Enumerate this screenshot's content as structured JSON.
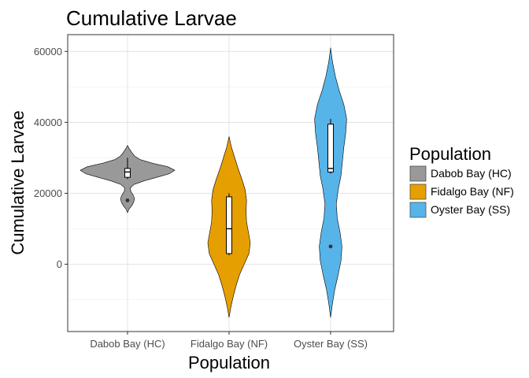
{
  "chart_data": {
    "type": "violin",
    "title": "Cumulative Larvae",
    "xlabel": "Population",
    "ylabel": "Cumulative Larvae",
    "ylim": [
      -16000,
      65000
    ],
    "yticks": [
      0,
      20000,
      40000,
      60000
    ],
    "ytick_labels": [
      "0",
      "20000",
      "40000",
      "60000"
    ],
    "grid": true,
    "legend": {
      "title": "Population",
      "position": "right"
    },
    "categories": [
      "Dabob Bay (HC)",
      "Fidalgo Bay (NF)",
      "Oyster Bay (SS)"
    ],
    "series": [
      {
        "name": "Dabob Bay (HC)",
        "color": "#999999",
        "box": {
          "q1": 24500,
          "median": 26000,
          "q3": 27000,
          "whisker_low": 24000,
          "whisker_high": 30000
        },
        "outliers": [
          18000
        ],
        "violin": {
          "min": 14500,
          "max": 33500,
          "profile": [
            [
              14500,
              0.0
            ],
            [
              15500,
              0.03
            ],
            [
              16500,
              0.09
            ],
            [
              17500,
              0.13
            ],
            [
              18500,
              0.15
            ],
            [
              19500,
              0.12
            ],
            [
              20500,
              0.07
            ],
            [
              21500,
              0.06
            ],
            [
              22500,
              0.14
            ],
            [
              23500,
              0.35
            ],
            [
              24500,
              0.62
            ],
            [
              25500,
              0.88
            ],
            [
              26500,
              1.0
            ],
            [
              27500,
              0.85
            ],
            [
              28500,
              0.52
            ],
            [
              29500,
              0.27
            ],
            [
              30500,
              0.15
            ],
            [
              31500,
              0.09
            ],
            [
              32500,
              0.04
            ],
            [
              33500,
              0.0
            ]
          ]
        }
      },
      {
        "name": "Fidalgo Bay (NF)",
        "color": "#E69F00",
        "box": {
          "q1": 3000,
          "median": 10000,
          "q3": 19000,
          "whisker_low": 2500,
          "whisker_high": 20000
        },
        "outliers": [],
        "violin": {
          "min": -15000,
          "max": 36000,
          "profile": [
            [
              -15000,
              0.0
            ],
            [
              -12000,
              0.04
            ],
            [
              -9000,
              0.09
            ],
            [
              -6000,
              0.15
            ],
            [
              -3000,
              0.22
            ],
            [
              0,
              0.32
            ],
            [
              3000,
              0.42
            ],
            [
              6000,
              0.45
            ],
            [
              9000,
              0.41
            ],
            [
              12000,
              0.37
            ],
            [
              15000,
              0.36
            ],
            [
              18000,
              0.37
            ],
            [
              21000,
              0.34
            ],
            [
              24000,
              0.27
            ],
            [
              27000,
              0.19
            ],
            [
              30000,
              0.12
            ],
            [
              33000,
              0.05
            ],
            [
              36000,
              0.0
            ]
          ]
        }
      },
      {
        "name": "Oyster Bay (SS)",
        "color": "#56B4E9",
        "box": {
          "q1": 26000,
          "median": 27000,
          "q3": 39500,
          "whisker_low": 25500,
          "whisker_high": 41000
        },
        "outliers": [
          5000
        ],
        "violin": {
          "min": -15000,
          "max": 61000,
          "profile": [
            [
              -15000,
              0.0
            ],
            [
              -11000,
              0.04
            ],
            [
              -7000,
              0.09
            ],
            [
              -3000,
              0.16
            ],
            [
              1000,
              0.22
            ],
            [
              5000,
              0.24
            ],
            [
              9000,
              0.2
            ],
            [
              13000,
              0.14
            ],
            [
              17000,
              0.12
            ],
            [
              21000,
              0.16
            ],
            [
              25000,
              0.22
            ],
            [
              29000,
              0.25
            ],
            [
              33000,
              0.28
            ],
            [
              37000,
              0.32
            ],
            [
              41000,
              0.34
            ],
            [
              45000,
              0.28
            ],
            [
              49000,
              0.18
            ],
            [
              53000,
              0.1
            ],
            [
              57000,
              0.04
            ],
            [
              61000,
              0.0
            ]
          ]
        }
      }
    ]
  }
}
